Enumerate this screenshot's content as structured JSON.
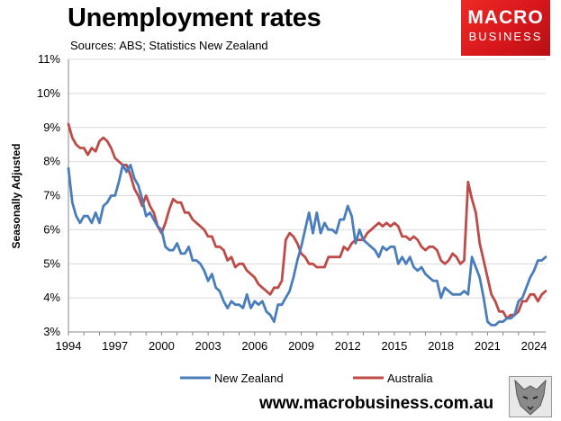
{
  "header": {
    "title": "Unemployment rates",
    "sources": "Sources: ABS; Statistics New Zealand"
  },
  "logo": {
    "line1": "MACRO",
    "line2": "BUSINESS"
  },
  "footer": {
    "url": "www.macrobusiness.com.au"
  },
  "chart_data": {
    "type": "line",
    "title": "Unemployment rates",
    "xlabel": "",
    "ylabel": "Seasonally Adjusted",
    "xlim": [
      1994,
      2024.75
    ],
    "ylim": [
      3,
      11
    ],
    "yticks": [
      "3%",
      "4%",
      "5%",
      "6%",
      "7%",
      "8%",
      "9%",
      "10%",
      "11%"
    ],
    "xticks": [
      "1994",
      "1997",
      "2000",
      "2003",
      "2006",
      "2009",
      "2012",
      "2015",
      "2018",
      "2021",
      "2024"
    ],
    "grid": true,
    "legend": "bottom",
    "series": [
      {
        "name": "New Zealand",
        "color": "#4a7ebb",
        "points": [
          [
            1994,
            7.8
          ],
          [
            1994.25,
            6.8
          ],
          [
            1994.5,
            6.4
          ],
          [
            1994.75,
            6.2
          ],
          [
            1995,
            6.4
          ],
          [
            1995.25,
            6.4
          ],
          [
            1995.5,
            6.2
          ],
          [
            1995.75,
            6.5
          ],
          [
            1996,
            6.2
          ],
          [
            1996.25,
            6.7
          ],
          [
            1996.5,
            6.8
          ],
          [
            1996.75,
            7.0
          ],
          [
            1997,
            7.0
          ],
          [
            1997.25,
            7.4
          ],
          [
            1997.5,
            7.9
          ],
          [
            1997.75,
            7.7
          ],
          [
            1998,
            7.9
          ],
          [
            1998.25,
            7.5
          ],
          [
            1998.5,
            7.3
          ],
          [
            1998.75,
            6.9
          ],
          [
            1999,
            6.4
          ],
          [
            1999.25,
            6.5
          ],
          [
            1999.5,
            6.3
          ],
          [
            1999.75,
            6.1
          ],
          [
            2000,
            6.0
          ],
          [
            2000.25,
            5.5
          ],
          [
            2000.5,
            5.4
          ],
          [
            2000.75,
            5.4
          ],
          [
            2001,
            5.6
          ],
          [
            2001.25,
            5.3
          ],
          [
            2001.5,
            5.3
          ],
          [
            2001.75,
            5.5
          ],
          [
            2002,
            5.1
          ],
          [
            2002.25,
            5.1
          ],
          [
            2002.5,
            5.0
          ],
          [
            2002.75,
            4.8
          ],
          [
            2003,
            4.5
          ],
          [
            2003.25,
            4.7
          ],
          [
            2003.5,
            4.3
          ],
          [
            2003.75,
            4.2
          ],
          [
            2004,
            3.9
          ],
          [
            2004.25,
            3.7
          ],
          [
            2004.5,
            3.9
          ],
          [
            2004.75,
            3.8
          ],
          [
            2005,
            3.8
          ],
          [
            2005.25,
            3.7
          ],
          [
            2005.5,
            4.1
          ],
          [
            2005.75,
            3.7
          ],
          [
            2006,
            3.9
          ],
          [
            2006.25,
            3.8
          ],
          [
            2006.5,
            3.9
          ],
          [
            2006.75,
            3.6
          ],
          [
            2007,
            3.5
          ],
          [
            2007.25,
            3.3
          ],
          [
            2007.5,
            3.8
          ],
          [
            2007.75,
            3.8
          ],
          [
            2008,
            4.0
          ],
          [
            2008.25,
            4.2
          ],
          [
            2008.5,
            4.6
          ],
          [
            2008.75,
            5.1
          ],
          [
            2009,
            5.5
          ],
          [
            2009.25,
            6.0
          ],
          [
            2009.5,
            6.5
          ],
          [
            2009.75,
            5.9
          ],
          [
            2010,
            6.5
          ],
          [
            2010.25,
            5.9
          ],
          [
            2010.5,
            6.2
          ],
          [
            2010.75,
            6.0
          ],
          [
            2011,
            6.0
          ],
          [
            2011.25,
            5.9
          ],
          [
            2011.5,
            6.3
          ],
          [
            2011.75,
            6.3
          ],
          [
            2012,
            6.7
          ],
          [
            2012.25,
            6.4
          ],
          [
            2012.5,
            5.6
          ],
          [
            2012.75,
            6.0
          ],
          [
            2013,
            5.7
          ],
          [
            2013.25,
            5.6
          ],
          [
            2013.5,
            5.5
          ],
          [
            2013.75,
            5.4
          ],
          [
            2014,
            5.2
          ],
          [
            2014.25,
            5.5
          ],
          [
            2014.5,
            5.4
          ],
          [
            2014.75,
            5.5
          ],
          [
            2015,
            5.5
          ],
          [
            2015.25,
            5.0
          ],
          [
            2015.5,
            5.2
          ],
          [
            2015.75,
            5.0
          ],
          [
            2016,
            5.2
          ],
          [
            2016.25,
            4.9
          ],
          [
            2016.5,
            4.8
          ],
          [
            2016.75,
            4.9
          ],
          [
            2017,
            4.7
          ],
          [
            2017.25,
            4.6
          ],
          [
            2017.5,
            4.5
          ],
          [
            2017.75,
            4.5
          ],
          [
            2018,
            4.0
          ],
          [
            2018.25,
            4.3
          ],
          [
            2018.5,
            4.2
          ],
          [
            2018.75,
            4.1
          ],
          [
            2019,
            4.1
          ],
          [
            2019.25,
            4.1
          ],
          [
            2019.5,
            4.2
          ],
          [
            2019.75,
            4.1
          ],
          [
            2020,
            5.2
          ],
          [
            2020.25,
            4.9
          ],
          [
            2020.5,
            4.6
          ],
          [
            2020.75,
            4.0
          ],
          [
            2021,
            3.3
          ],
          [
            2021.25,
            3.2
          ],
          [
            2021.5,
            3.2
          ],
          [
            2021.75,
            3.3
          ],
          [
            2022,
            3.3
          ],
          [
            2022.25,
            3.4
          ],
          [
            2022.5,
            3.4
          ],
          [
            2022.75,
            3.5
          ],
          [
            2023,
            3.9
          ],
          [
            2023.25,
            4.0
          ],
          [
            2023.5,
            4.3
          ],
          [
            2023.75,
            4.6
          ],
          [
            2024,
            4.8
          ],
          [
            2024.25,
            5.1
          ],
          [
            2024.5,
            5.1
          ],
          [
            2024.75,
            5.2
          ]
        ]
      },
      {
        "name": "Australia",
        "color": "#be4b48",
        "points": [
          [
            1994,
            9.1
          ],
          [
            1994.25,
            8.7
          ],
          [
            1994.5,
            8.5
          ],
          [
            1994.75,
            8.4
          ],
          [
            1995,
            8.4
          ],
          [
            1995.25,
            8.2
          ],
          [
            1995.5,
            8.4
          ],
          [
            1995.75,
            8.3
          ],
          [
            1996,
            8.6
          ],
          [
            1996.25,
            8.7
          ],
          [
            1996.5,
            8.6
          ],
          [
            1996.75,
            8.4
          ],
          [
            1997,
            8.1
          ],
          [
            1997.25,
            8.0
          ],
          [
            1997.5,
            7.9
          ],
          [
            1997.75,
            7.9
          ],
          [
            1998,
            7.6
          ],
          [
            1998.25,
            7.2
          ],
          [
            1998.5,
            7.0
          ],
          [
            1998.75,
            6.7
          ],
          [
            1999,
            7.0
          ],
          [
            1999.25,
            6.7
          ],
          [
            1999.5,
            6.5
          ],
          [
            1999.75,
            6.1
          ],
          [
            2000,
            5.9
          ],
          [
            2000.25,
            6.2
          ],
          [
            2000.5,
            6.6
          ],
          [
            2000.75,
            6.9
          ],
          [
            2001,
            6.8
          ],
          [
            2001.25,
            6.8
          ],
          [
            2001.5,
            6.5
          ],
          [
            2001.75,
            6.5
          ],
          [
            2002,
            6.3
          ],
          [
            2002.25,
            6.2
          ],
          [
            2002.5,
            6.1
          ],
          [
            2002.75,
            6.0
          ],
          [
            2003,
            5.8
          ],
          [
            2003.25,
            5.8
          ],
          [
            2003.5,
            5.5
          ],
          [
            2003.75,
            5.5
          ],
          [
            2004,
            5.4
          ],
          [
            2004.25,
            5.1
          ],
          [
            2004.5,
            5.2
          ],
          [
            2004.75,
            4.9
          ],
          [
            2005,
            5.0
          ],
          [
            2005.25,
            5.0
          ],
          [
            2005.5,
            4.8
          ],
          [
            2005.75,
            4.7
          ],
          [
            2006,
            4.6
          ],
          [
            2006.25,
            4.4
          ],
          [
            2006.5,
            4.3
          ],
          [
            2006.75,
            4.2
          ],
          [
            2007,
            4.1
          ],
          [
            2007.25,
            4.3
          ],
          [
            2007.5,
            4.3
          ],
          [
            2007.75,
            4.5
          ],
          [
            2008,
            5.7
          ],
          [
            2008.25,
            5.9
          ],
          [
            2008.5,
            5.8
          ],
          [
            2008.75,
            5.6
          ],
          [
            2009,
            5.3
          ],
          [
            2009.25,
            5.2
          ],
          [
            2009.5,
            5.0
          ],
          [
            2009.75,
            5.0
          ],
          [
            2010,
            4.9
          ],
          [
            2010.25,
            4.9
          ],
          [
            2010.5,
            4.9
          ],
          [
            2010.75,
            5.2
          ],
          [
            2011,
            5.2
          ],
          [
            2011.25,
            5.2
          ],
          [
            2011.5,
            5.2
          ],
          [
            2011.75,
            5.5
          ],
          [
            2012,
            5.4
          ],
          [
            2012.25,
            5.6
          ],
          [
            2012.5,
            5.7
          ],
          [
            2012.75,
            5.7
          ],
          [
            2013,
            5.7
          ],
          [
            2013.25,
            5.9
          ],
          [
            2013.5,
            6.0
          ],
          [
            2013.75,
            6.1
          ],
          [
            2014,
            6.2
          ],
          [
            2014.25,
            6.1
          ],
          [
            2014.5,
            6.2
          ],
          [
            2014.75,
            6.1
          ],
          [
            2015,
            6.2
          ],
          [
            2015.25,
            6.1
          ],
          [
            2015.5,
            5.8
          ],
          [
            2015.75,
            5.8
          ],
          [
            2016,
            5.7
          ],
          [
            2016.25,
            5.8
          ],
          [
            2016.5,
            5.7
          ],
          [
            2016.75,
            5.5
          ],
          [
            2017,
            5.4
          ],
          [
            2017.25,
            5.5
          ],
          [
            2017.5,
            5.5
          ],
          [
            2017.75,
            5.4
          ],
          [
            2018,
            5.1
          ],
          [
            2018.25,
            5.0
          ],
          [
            2018.5,
            5.1
          ],
          [
            2018.75,
            5.3
          ],
          [
            2019,
            5.2
          ],
          [
            2019.25,
            5.0
          ],
          [
            2019.5,
            5.1
          ],
          [
            2019.75,
            7.4
          ],
          [
            2020,
            6.9
          ],
          [
            2020.25,
            6.5
          ],
          [
            2020.5,
            5.6
          ],
          [
            2020.75,
            5.1
          ],
          [
            2021,
            4.6
          ],
          [
            2021.25,
            4.1
          ],
          [
            2021.5,
            3.9
          ],
          [
            2021.75,
            3.6
          ],
          [
            2022,
            3.6
          ],
          [
            2022.25,
            3.4
          ],
          [
            2022.5,
            3.5
          ],
          [
            2022.75,
            3.5
          ],
          [
            2023,
            3.6
          ],
          [
            2023.25,
            3.9
          ],
          [
            2023.5,
            3.9
          ],
          [
            2023.75,
            4.1
          ],
          [
            2024,
            4.1
          ],
          [
            2024.25,
            3.9
          ],
          [
            2024.5,
            4.1
          ],
          [
            2024.75,
            4.2
          ]
        ]
      }
    ]
  }
}
